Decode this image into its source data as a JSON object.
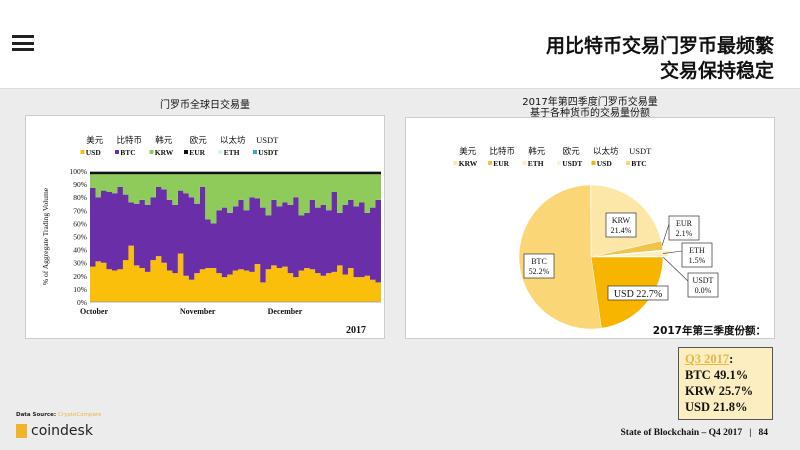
{
  "header": {
    "title_line1": "用比特币交易门罗币最频繁",
    "title_line2": "交易保持稳定",
    "menu_icon": "hamburger-icon"
  },
  "chart_data": [
    {
      "type": "area",
      "stacked": true,
      "title": "门罗币全球日交易量",
      "legend_cn": [
        "美元",
        "比特币",
        "韩元",
        "欧元",
        "以太坊",
        "USDT"
      ],
      "ylabel": "% of Aggregate Trading Volume",
      "ylim": [
        0,
        100
      ],
      "yticks": [
        "0%",
        "10%",
        "20%",
        "30%",
        "40%",
        "50%",
        "60%",
        "70%",
        "80%",
        "90%",
        "100%"
      ],
      "xticks": [
        "October",
        "November",
        "December"
      ],
      "year_label": "2017",
      "legend_placement": "top",
      "grid": false,
      "series": [
        {
          "name": "USD",
          "color": "#f9bf0b",
          "values": [
            27,
            31,
            30,
            25,
            24,
            25,
            32,
            43,
            28,
            26,
            23,
            32,
            35,
            30,
            24,
            22,
            37,
            20,
            17,
            22,
            25,
            26,
            26,
            22,
            19,
            21,
            24,
            25,
            24,
            23,
            29,
            15,
            25,
            28,
            26,
            27,
            22,
            19,
            24,
            26,
            25,
            22,
            20,
            22,
            23,
            28,
            21,
            26,
            19,
            19,
            20,
            17,
            15
          ]
        },
        {
          "name": "BTC",
          "color": "#6a2ea8",
          "values": [
            60,
            49,
            55,
            59,
            59,
            63,
            50,
            33,
            47,
            52,
            51,
            48,
            53,
            56,
            54,
            52,
            48,
            63,
            63,
            53,
            63,
            37,
            34,
            48,
            53,
            47,
            49,
            53,
            46,
            57,
            50,
            57,
            41,
            50,
            47,
            49,
            52,
            61,
            42,
            42,
            53,
            50,
            54,
            48,
            61,
            40,
            53,
            52,
            54,
            57,
            48,
            55,
            63
          ]
        },
        {
          "name": "KRW",
          "color": "#8fcb5b",
          "values": [
            10.5,
            17.5,
            12.5,
            13.5,
            14.5,
            9.5,
            15.5,
            21.5,
            22.5,
            19.5,
            23.5,
            17.5,
            9.5,
            11.5,
            19.5,
            23.5,
            12.5,
            14.5,
            17.5,
            22.5,
            9.5,
            34.5,
            37.5,
            27.5,
            25.5,
            29.5,
            24.5,
            19.5,
            27.5,
            17.5,
            18.5,
            25.5,
            31.5,
            19.5,
            24.5,
            21.5,
            23.5,
            17.5,
            31.5,
            29.5,
            19.5,
            25.5,
            23.5,
            27.5,
            13.5,
            29.5,
            23.5,
            19.5,
            24.5,
            21.5,
            29.5,
            25.5,
            19.5
          ]
        },
        {
          "name": "EUR",
          "color": "#111111",
          "constant": 2
        },
        {
          "name": "ETH",
          "color": "#d9f1ee",
          "constant": 0.5
        },
        {
          "name": "USDT",
          "color": "#3aa6c8",
          "constant": 0
        }
      ]
    },
    {
      "type": "pie",
      "title_line1": "2017年第四季度门罗币交易量",
      "title_line2": "基于各种货币的交易量份额",
      "legend_cn": [
        "美元",
        "比特币",
        "韩元",
        "欧元",
        "以太坊",
        "USDT"
      ],
      "legend_placement": "top",
      "slices": [
        {
          "name": "KRW",
          "value": 21.4,
          "label": "21.4%",
          "color": "#fce7a8"
        },
        {
          "name": "EUR",
          "value": 2.1,
          "label": "2.1%",
          "color": "#f2c34c"
        },
        {
          "name": "ETH",
          "value": 1.5,
          "label": "1.5%",
          "color": "#fdeec2",
          "exploded": true
        },
        {
          "name": "USDT",
          "value": 0.0,
          "label": "0.0%",
          "color": "#fdf3d8"
        },
        {
          "name": "USD",
          "value": 22.7,
          "label": "22.7%",
          "color": "#f7b500"
        },
        {
          "name": "BTC",
          "value": 52.2,
          "label": "52.2%",
          "color": "#fbd676"
        }
      ]
    }
  ],
  "q3": {
    "title": "2017年第三季度份额：",
    "heading": "Q3 2017",
    "colon": ":",
    "lines": [
      "BTC 49.1%",
      "KRW 25.7%",
      "USD 21.8%"
    ]
  },
  "footer": {
    "source_label": "Data Source: ",
    "source_name": "CryptoCompare",
    "brand": "coindesk",
    "report": "State of Blockchain – Q4 2017   |   84"
  }
}
